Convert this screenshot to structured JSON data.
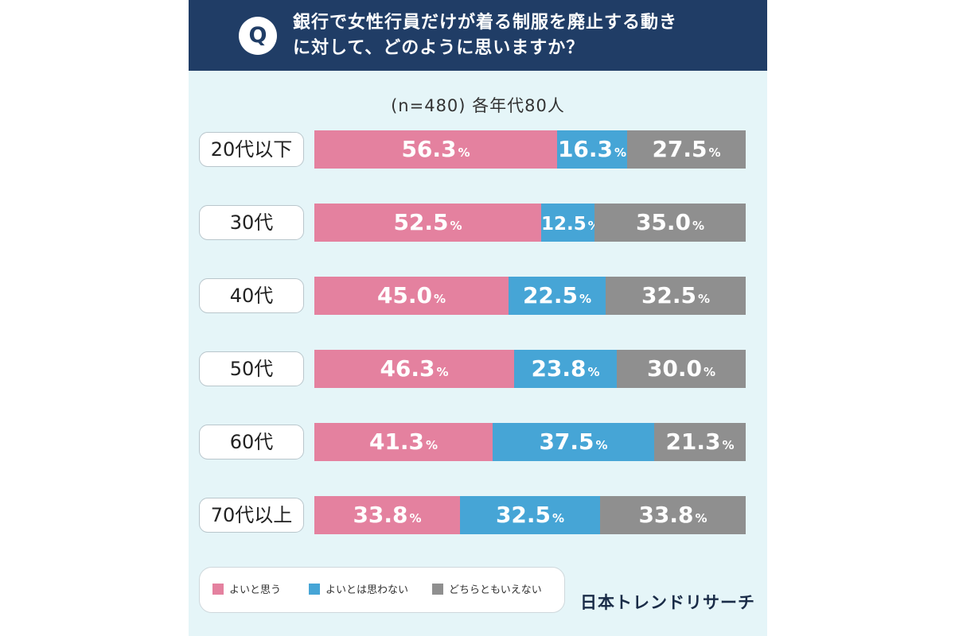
{
  "question": {
    "badge": "Q",
    "line1": "銀行で女性行員だけが着る制服を廃止する動き",
    "line2": "に対して、どのように思いますか？"
  },
  "sample_note": "(n=480) 各年代80人",
  "brand": "日本トレンドリサーチ",
  "chart_data": {
    "type": "bar",
    "stacked": true,
    "orientation": "horizontal",
    "unit": "%",
    "categories": [
      "20代以下",
      "30代",
      "40代",
      "50代",
      "60代",
      "70代以上"
    ],
    "series": [
      {
        "name": "よいと思う",
        "color": "#e4819f",
        "values": [
          56.3,
          52.5,
          45.0,
          46.3,
          41.3,
          33.8
        ]
      },
      {
        "name": "よいとは思わない",
        "color": "#46a5d6",
        "values": [
          16.3,
          12.5,
          22.5,
          23.8,
          37.5,
          32.5
        ]
      },
      {
        "name": "どちらともいえない",
        "color": "#8f8f8f",
        "values": [
          27.5,
          35.0,
          32.5,
          30.0,
          21.3,
          33.8
        ]
      }
    ],
    "labels": [
      [
        "56.3",
        "16.3",
        "27.5"
      ],
      [
        "52.5",
        "12.5",
        "35.0"
      ],
      [
        "45.0",
        "22.5",
        "32.5"
      ],
      [
        "46.3",
        "23.8",
        "30.0"
      ],
      [
        "41.3",
        "37.5",
        "21.3"
      ],
      [
        "33.8",
        "32.5",
        "33.8"
      ]
    ],
    "legend_position": "bottom-left"
  }
}
